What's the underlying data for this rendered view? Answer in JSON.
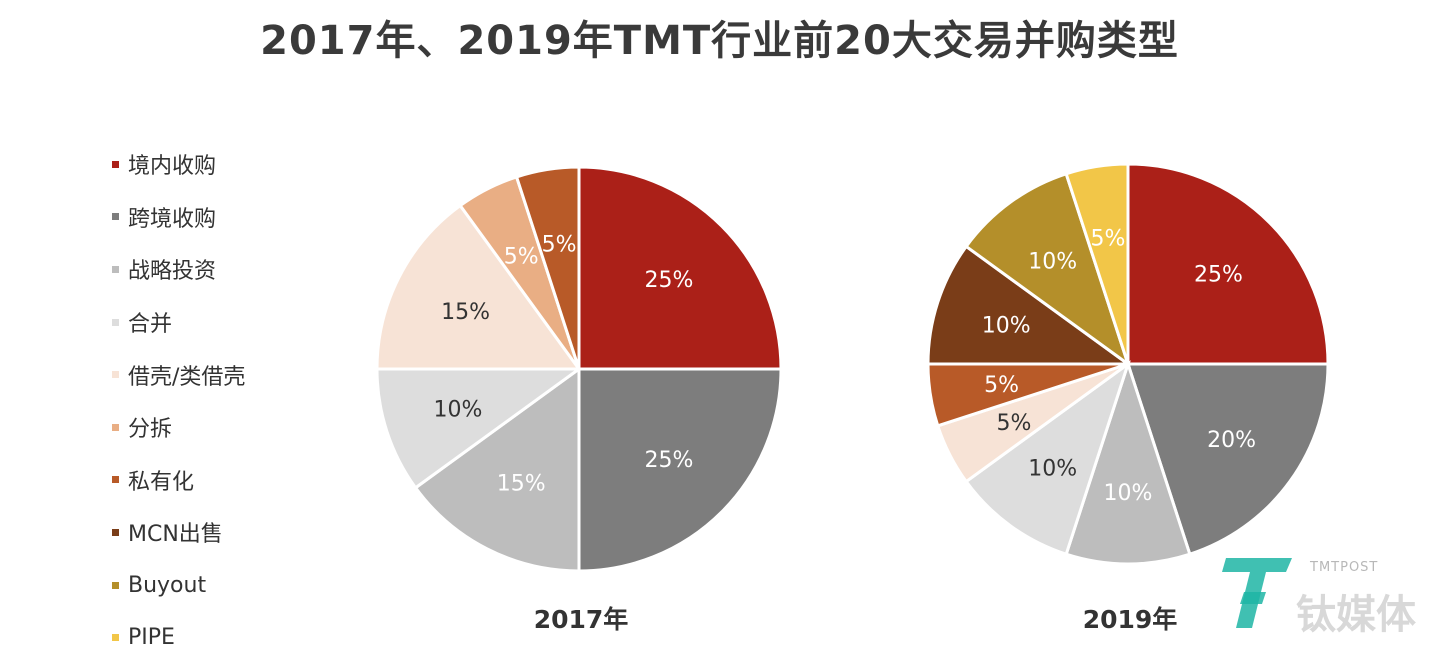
{
  "title": "2017年、2019年TMT行业前20大交易并购类型",
  "chart_data": {
    "type": "pie",
    "categories": [
      "境内收购",
      "跨境收购",
      "战略投资",
      "合并",
      "借壳/类借壳",
      "分拆",
      "私有化",
      "MCN出售",
      "Buyout",
      "PIPE"
    ],
    "colors": [
      "#ab2018",
      "#7d7d7d",
      "#bdbdbd",
      "#dddddd",
      "#f7e3d6",
      "#e9ae84",
      "#b85a28",
      "#7a3d18",
      "#b48f2a",
      "#f2c648"
    ],
    "legend_position": "left",
    "pies": [
      {
        "name": "2017年",
        "slices": [
          {
            "category": "境内收购",
            "value": 25,
            "label": "25%"
          },
          {
            "category": "跨境收购",
            "value": 25,
            "label": "25%"
          },
          {
            "category": "战略投资",
            "value": 15,
            "label": "15%"
          },
          {
            "category": "合并",
            "value": 10,
            "label": "10%"
          },
          {
            "category": "借壳/类借壳",
            "value": 15,
            "label": "15%"
          },
          {
            "category": "分拆",
            "value": 5,
            "label": "5%"
          },
          {
            "category": "私有化",
            "value": 5,
            "label": "5%"
          }
        ]
      },
      {
        "name": "2019年",
        "slices": [
          {
            "category": "境内收购",
            "value": 25,
            "label": "25%"
          },
          {
            "category": "跨境收购",
            "value": 20,
            "label": "20%"
          },
          {
            "category": "战略投资",
            "value": 10,
            "label": "10%"
          },
          {
            "category": "合并",
            "value": 10,
            "label": "10%"
          },
          {
            "category": "借壳/类借壳",
            "value": 5,
            "label": "5%"
          },
          {
            "category": "私有化",
            "value": 5,
            "label": "5%"
          },
          {
            "category": "MCN出售",
            "value": 10,
            "label": "10%"
          },
          {
            "category": "Buyout",
            "value": 10,
            "label": "10%"
          },
          {
            "category": "PIPE",
            "value": 5,
            "label": "5%"
          }
        ]
      }
    ]
  },
  "watermark": {
    "brand_en": "TMTPOST",
    "brand_cn": "钛媒体",
    "color": "#1fb5a4"
  }
}
